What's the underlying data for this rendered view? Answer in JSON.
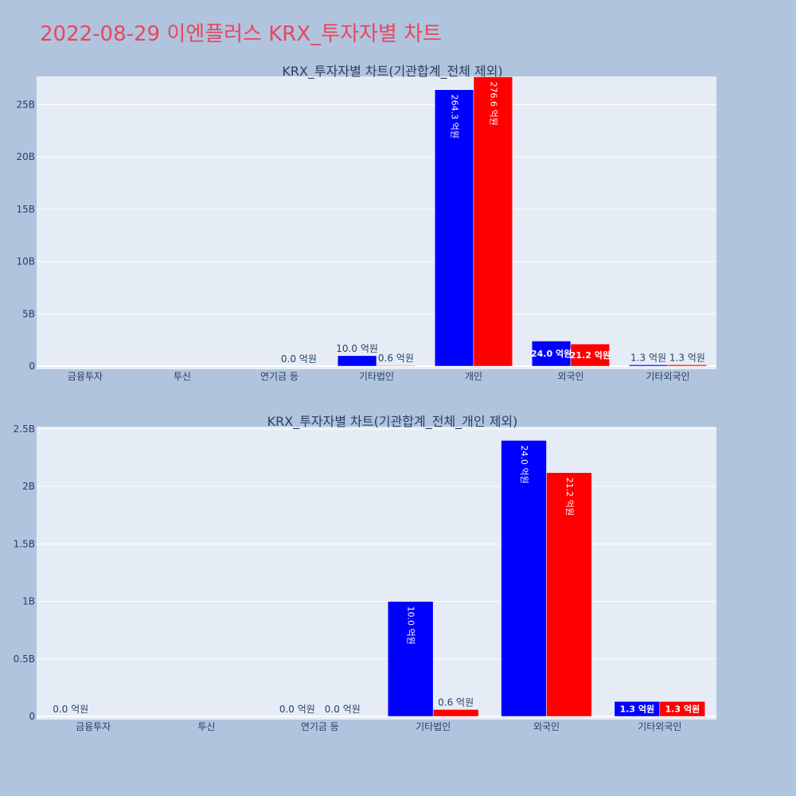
{
  "page_title": "2022-08-29 이엔플러스 KRX_투자자별 차트",
  "colors": {
    "buy": "#0000ff",
    "sell": "#ff0000",
    "plot_bg": "#e5ecf6",
    "page_bg": "#b0c4de",
    "title": "#e8465f"
  },
  "chart_data": [
    {
      "type": "bar",
      "title": "KRX_투자자별 차트(기관합계_전체 제외)",
      "categories": [
        "금융투자",
        "투신",
        "연기금 등",
        "기타법인",
        "개인",
        "외국인",
        "기타외국인"
      ],
      "ylim": [
        0,
        27700000000
      ],
      "yticks": [
        0,
        5000000000,
        10000000000,
        15000000000,
        20000000000,
        25000000000
      ],
      "ytick_labels": [
        "0",
        "5B",
        "10B",
        "15B",
        "20B",
        "25B"
      ],
      "series": [
        {
          "values": [
            0,
            0,
            0,
            1000000000,
            26430000000,
            2400000000,
            130000000
          ],
          "labels": [
            "",
            "",
            "",
            "10.0 억원",
            "264.3 억원",
            "24.0 억원",
            "1.3 억원"
          ]
        },
        {
          "values": [
            0,
            0,
            0,
            60000000,
            27660000000,
            2120000000,
            130000000
          ],
          "labels": [
            "",
            "",
            "0.0 억원",
            "0.6 억원",
            "276.6 억원",
            "21.2 억원",
            "1.3 억원"
          ]
        }
      ]
    },
    {
      "type": "bar",
      "title": "KRX_투자자별 차트(기관합계_전체_개인 제외)",
      "categories": [
        "금융투자",
        "투신",
        "연기금 등",
        "기타법인",
        "외국인",
        "기타외국인"
      ],
      "ylim": [
        0,
        2520000000
      ],
      "yticks": [
        0,
        500000000,
        1000000000,
        1500000000,
        2000000000,
        2500000000
      ],
      "ytick_labels": [
        "0",
        "0.5B",
        "1B",
        "1.5B",
        "2B",
        "2.5B"
      ],
      "series": [
        {
          "values": [
            0,
            0,
            0,
            1000000000,
            2400000000,
            130000000
          ],
          "labels": [
            "0.0 억원",
            "",
            "0.0 억원",
            "10.0 억원",
            "24.0 억원",
            "1.3 억원"
          ]
        },
        {
          "values": [
            0,
            0,
            0,
            60000000,
            2120000000,
            130000000
          ],
          "labels": [
            "",
            "",
            "0.0 억원",
            "0.6 억원",
            "21.2 억원",
            "1.3 억원"
          ]
        }
      ]
    }
  ]
}
